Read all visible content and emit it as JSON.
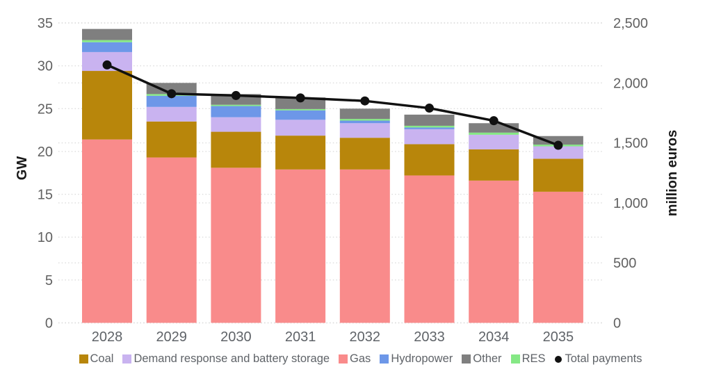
{
  "chart_data": {
    "type": "stacked-bar-with-line",
    "title": "",
    "categories": [
      "2028",
      "2029",
      "2030",
      "2031",
      "2032",
      "2033",
      "2034",
      "2035"
    ],
    "bar_value_unit": "GW",
    "series": [
      {
        "name": "Gas",
        "color": "#F98B8B",
        "values": [
          21.4,
          19.3,
          18.1,
          17.9,
          17.9,
          17.2,
          16.6,
          15.3
        ]
      },
      {
        "name": "Coal",
        "color": "#B8860B",
        "values": [
          8.0,
          4.2,
          4.2,
          3.95,
          3.7,
          3.65,
          3.65,
          3.85
        ]
      },
      {
        "name": "Demand response and battery storage",
        "color": "#C9B3F0",
        "values": [
          2.2,
          1.7,
          1.7,
          1.85,
          1.7,
          1.75,
          1.7,
          1.45
        ]
      },
      {
        "name": "Hydropower",
        "color": "#6D97E8",
        "values": [
          1.15,
          1.3,
          1.3,
          1.1,
          0.3,
          0.2,
          0,
          0
        ]
      },
      {
        "name": "RES",
        "color": "#85E885",
        "values": [
          0.25,
          0.2,
          0.15,
          0.15,
          0.2,
          0.2,
          0.25,
          0.2
        ]
      },
      {
        "name": "Other",
        "color": "#7F7F7F",
        "values": [
          1.3,
          1.3,
          1.25,
          1.35,
          1.2,
          1.3,
          1.1,
          1.0
        ]
      }
    ],
    "bar_totals_gw": [
      34.3,
      28.0,
      26.7,
      26.3,
      25.0,
      24.3,
      23.3,
      21.8
    ],
    "line_series": {
      "name": "Total payments",
      "color": "#111111",
      "axis": "right",
      "values": [
        2150,
        1910,
        1895,
        1875,
        1850,
        1790,
        1685,
        1480
      ]
    },
    "left_axis": {
      "title": "GW",
      "min": 0,
      "max": 35,
      "ticks": [
        {
          "value": 0,
          "label": "0"
        },
        {
          "value": 5,
          "label": "5"
        },
        {
          "value": 10,
          "label": "10"
        },
        {
          "value": 15,
          "label": "15"
        },
        {
          "value": 20,
          "label": "20"
        },
        {
          "value": 25,
          "label": "25"
        },
        {
          "value": 30,
          "label": "30"
        },
        {
          "value": 35,
          "label": "35"
        }
      ]
    },
    "right_axis": {
      "title": "million euros",
      "min": 0,
      "max": 2500,
      "ticks": [
        {
          "value": 0,
          "label": "0"
        },
        {
          "value": 500,
          "label": "500"
        },
        {
          "value": 1000,
          "label": "1,000"
        },
        {
          "value": 1500,
          "label": "1,500"
        },
        {
          "value": 2000,
          "label": "2,000"
        },
        {
          "value": 2500,
          "label": "2,500"
        }
      ]
    },
    "grid": "dotted horizontal, both axes tick sets",
    "legend_position": "bottom"
  },
  "legend": {
    "items": [
      {
        "label": "Coal",
        "marker": "square",
        "color": "#B8860B"
      },
      {
        "label": "Demand response and battery storage",
        "marker": "square",
        "color": "#C9B3F0"
      },
      {
        "label": "Gas",
        "marker": "square",
        "color": "#F98B8B"
      },
      {
        "label": "Hydropower",
        "marker": "square",
        "color": "#6D97E8"
      },
      {
        "label": "Other",
        "marker": "square",
        "color": "#7F7F7F"
      },
      {
        "label": "RES",
        "marker": "square",
        "color": "#85E885"
      },
      {
        "label": "Total payments",
        "marker": "dot",
        "color": "#111111"
      }
    ]
  }
}
